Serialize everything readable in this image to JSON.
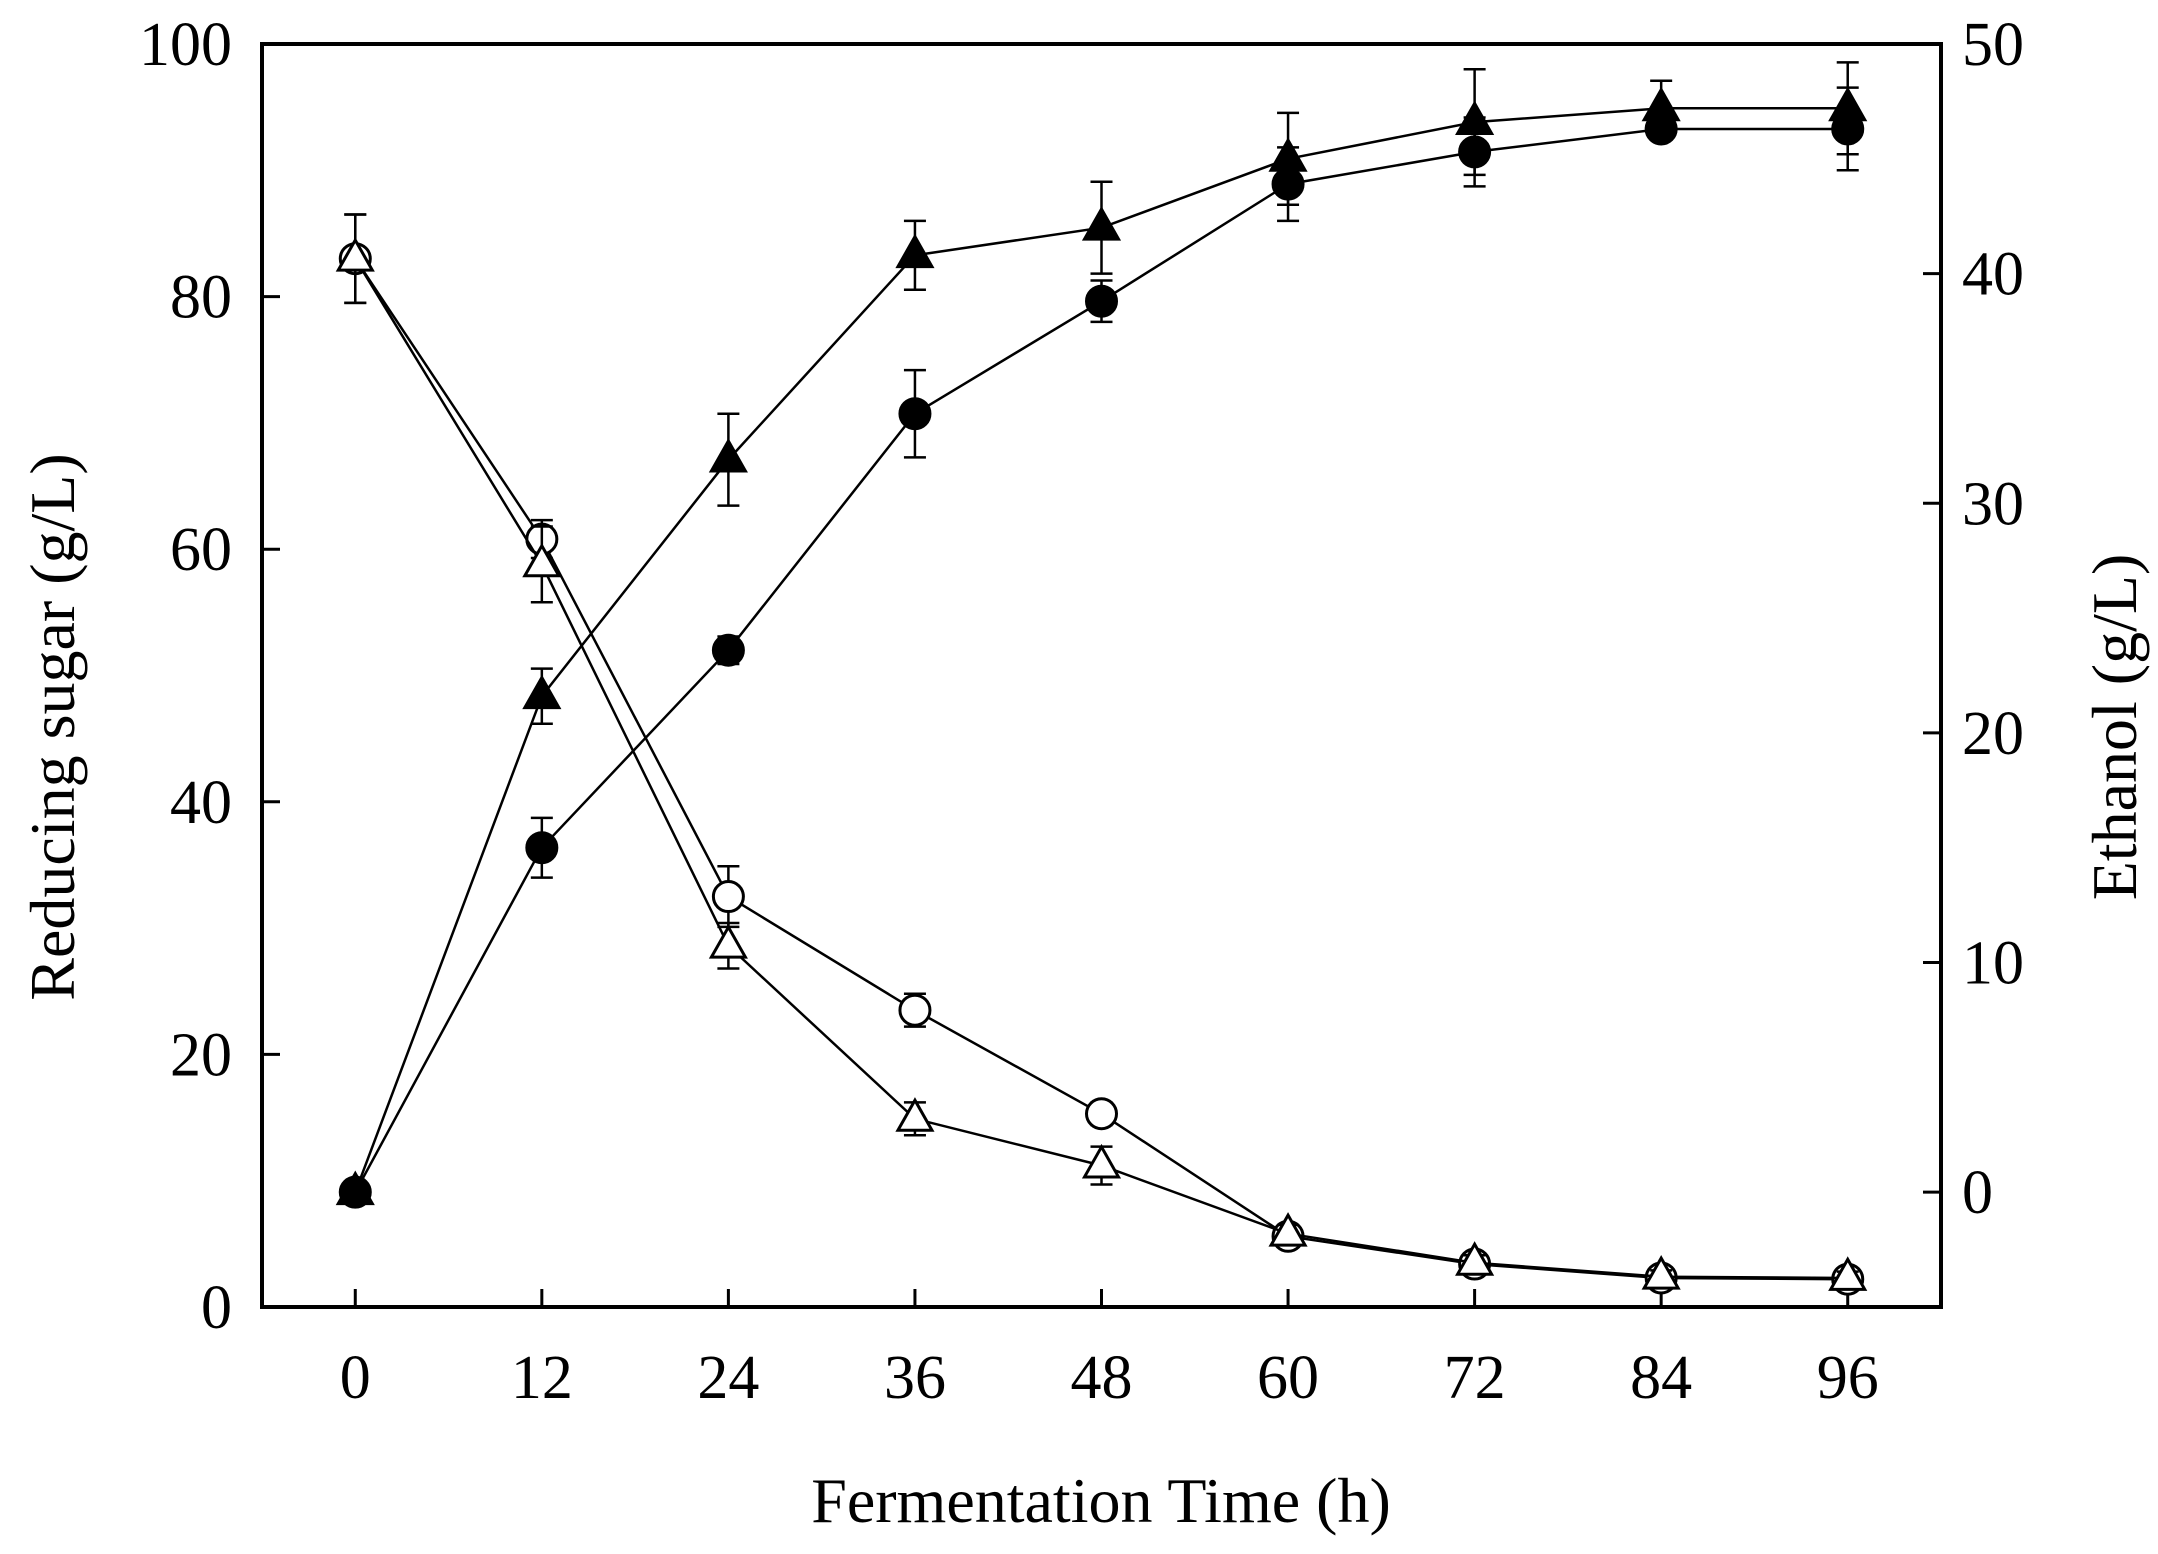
{
  "chart_data": {
    "type": "line",
    "title": "",
    "xlabel": "Fermentation Time (h)",
    "ylabel_left": "Reducing sugar (g/L)",
    "ylabel_right": "Ethanol (g/L)",
    "x": [
      0,
      12,
      24,
      36,
      48,
      60,
      72,
      84,
      96
    ],
    "xticks": [
      "0",
      "12",
      "24",
      "36",
      "48",
      "60",
      "72",
      "84",
      "96"
    ],
    "xlim": [
      -6,
      102
    ],
    "ylim_left": [
      0,
      100
    ],
    "yticks_left": [
      "0",
      "20",
      "40",
      "60",
      "80",
      "100"
    ],
    "ylim_right": [
      -5,
      50
    ],
    "yticks_right": [
      "0",
      "10",
      "20",
      "30",
      "40",
      "50"
    ],
    "grid": false,
    "legend": "none",
    "series": [
      {
        "name": "reducing-sugar-open-circle",
        "axis": "left",
        "marker": "circle",
        "filled": false,
        "values": [
          83,
          60.8,
          32.5,
          23.5,
          15.3,
          5.6,
          3.4,
          2.3,
          2.2
        ],
        "errors": [
          3.5,
          1.5,
          2.4,
          1.3,
          0.9,
          0.8,
          0.7,
          0.5,
          0.5
        ]
      },
      {
        "name": "reducing-sugar-open-triangle",
        "axis": "left",
        "marker": "triangle",
        "filled": false,
        "values": [
          83,
          58.8,
          28.6,
          14.9,
          11.2,
          5.8,
          3.5,
          2.4,
          2.3
        ],
        "errors": [
          3.5,
          3.0,
          1.8,
          1.3,
          1.5,
          0.7,
          0.6,
          0.5,
          0.5
        ]
      },
      {
        "name": "ethanol-filled-circle",
        "axis": "right",
        "marker": "circle",
        "filled": true,
        "values": [
          0,
          15,
          23.6,
          33.9,
          38.8,
          43.9,
          45.3,
          46.3,
          46.3
        ],
        "errors": [
          0.2,
          1.3,
          0.6,
          1.9,
          0.9,
          1.6,
          1.5,
          0.4,
          1.8
        ]
      },
      {
        "name": "ethanol-filled-triangle",
        "axis": "right",
        "marker": "triangle",
        "filled": true,
        "values": [
          0,
          21.6,
          31.9,
          40.8,
          42,
          45,
          46.6,
          47.2,
          47.2
        ],
        "errors": [
          0.2,
          1.2,
          2.0,
          1.5,
          2.0,
          2.0,
          2.3,
          1.2,
          2.0
        ]
      }
    ]
  }
}
